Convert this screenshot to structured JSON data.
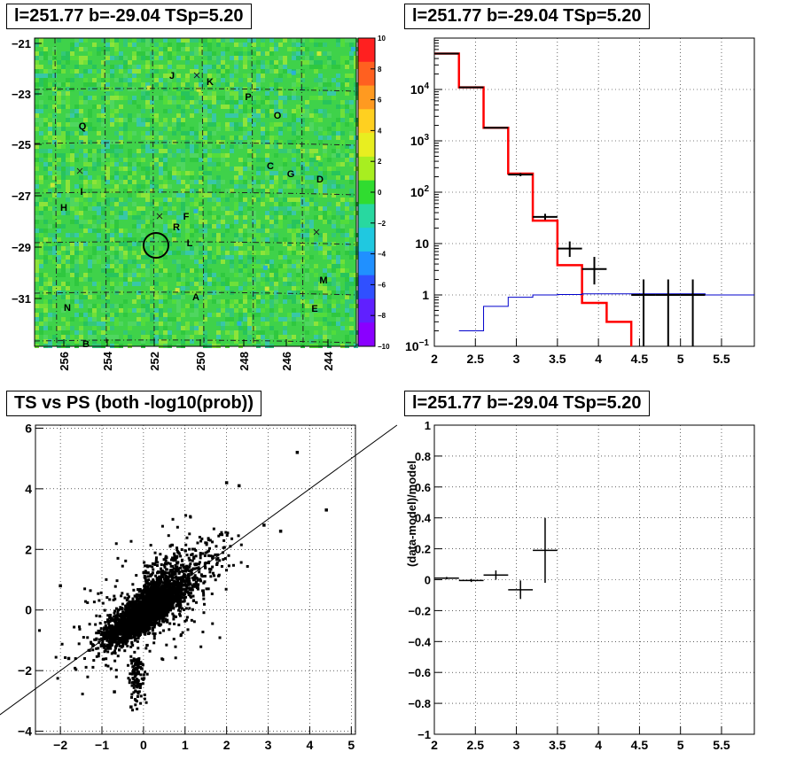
{
  "panels": {
    "skymap_title": "l=251.77 b=-29.04 TSp=5.20",
    "spectrum_title": "l=251.77 b=-29.04 TSp=5.20",
    "scatter_title": "TS vs PS (both -log10(prob))",
    "residual_title": "l=251.77 b=-29.04 TSp=5.20"
  },
  "chart_data": [
    {
      "type": "heatmap",
      "title": "l=251.77 b=-29.04 TSp=5.20",
      "x_ticks": [
        "256",
        "254",
        "252",
        "250",
        "248",
        "246",
        "244"
      ],
      "y_ticks": [
        "-21",
        "-23",
        "-25",
        "-27",
        "-29",
        "-31"
      ],
      "colorbar_ticks": [
        "10",
        "8",
        "6",
        "4",
        "2",
        "0",
        "-2",
        "-4",
        "-6",
        "-8",
        "-10"
      ],
      "zlim": [
        -10,
        10
      ],
      "source_labels": [
        "J",
        "K",
        "P",
        "O",
        "Q",
        "C",
        "G",
        "D",
        "I",
        "H",
        "F",
        "R",
        "L",
        "M",
        "A",
        "N",
        "E",
        "B"
      ],
      "marker": {
        "l": 251.77,
        "b": -29.04
      }
    },
    {
      "type": "line",
      "title": "l=251.77 b=-29.04 TSp=5.20",
      "y_scale": "log",
      "xlim": [
        2,
        5.9
      ],
      "ylim": [
        0.1,
        100000
      ],
      "x_ticks": [
        "2",
        "2.5",
        "3",
        "3.5",
        "4",
        "4.5",
        "5",
        "5.5"
      ],
      "y_ticks": [
        "10^-1",
        "1",
        "10",
        "10^2",
        "10^3",
        "10^4"
      ],
      "series": [
        {
          "color": "#ff0000",
          "bin_edges": [
            2,
            2.3,
            2.6,
            2.9,
            3.2,
            3.5,
            3.8,
            4.1,
            4.4
          ],
          "values": [
            50000,
            11000,
            1800,
            230,
            28,
            3.8,
            0.7,
            0.3
          ]
        },
        {
          "color": "#0000cc",
          "bin_edges": [
            2.3,
            2.6,
            2.9,
            3.2,
            3.5,
            3.8,
            5.3,
            5.9
          ],
          "values": [
            0.2,
            0.6,
            0.9,
            1.0,
            1.02,
            1.05,
            1.0
          ]
        },
        {
          "color": "#000000",
          "type": "errorbars",
          "x": [
            2.15,
            2.45,
            2.75,
            3.05,
            3.35,
            3.65,
            3.95,
            4.55,
            4.85,
            5.15
          ],
          "xerr": 0.15,
          "y": [
            50000,
            11000,
            1800,
            220,
            33,
            8,
            3.2,
            1.0,
            1.0,
            1.0
          ],
          "ylo": [
            49500,
            10800,
            1750,
            205,
            29,
            5.5,
            1.6,
            0.1,
            0.1,
            0.1
          ],
          "yhi": [
            50500,
            11200,
            1850,
            235,
            38,
            11,
            5.5,
            2.0,
            2.0,
            2.0
          ]
        }
      ]
    },
    {
      "type": "scatter",
      "title": "TS vs PS (both -log10(prob))",
      "xlim": [
        -2.6,
        5.1
      ],
      "ylim": [
        -4.1,
        6.1
      ],
      "x_ticks": [
        "-2",
        "-1",
        "0",
        "1",
        "2",
        "3",
        "4",
        "5"
      ],
      "y_ticks": [
        "-4",
        "-2",
        "0",
        "2",
        "4",
        "6"
      ],
      "reference_line": {
        "slope": 1,
        "intercept": 0
      },
      "outliers": [
        [
          3.7,
          5.2
        ],
        [
          4.4,
          3.3
        ],
        [
          2.0,
          4.2
        ],
        [
          2.3,
          4.1
        ],
        [
          3.3,
          2.6
        ],
        [
          2.9,
          2.8
        ],
        [
          -2.0,
          0.8
        ],
        [
          -1.8,
          -1.6
        ],
        [
          -0.7,
          -2.7
        ],
        [
          -0.3,
          -3.2
        ]
      ]
    },
    {
      "type": "scatter",
      "title": "l=251.77 b=-29.04 TSp=5.20",
      "ylabel": "(data-model)/model",
      "xlim": [
        2,
        5.9
      ],
      "ylim": [
        -1,
        1
      ],
      "x_ticks": [
        "2",
        "2.5",
        "3",
        "3.5",
        "4",
        "4.5",
        "5",
        "5.5"
      ],
      "y_ticks": [
        "-1",
        "-0.8",
        "-0.6",
        "-0.4",
        "-0.2",
        "0",
        "0.2",
        "0.4",
        "0.6",
        "0.8",
        "1"
      ],
      "x": [
        2.15,
        2.45,
        2.75,
        3.05,
        3.35
      ],
      "y": [
        0.01,
        -0.005,
        0.03,
        -0.065,
        0.19
      ],
      "yerr": [
        0.008,
        0.01,
        0.03,
        0.06,
        0.21
      ],
      "xerr": 0.15
    }
  ]
}
